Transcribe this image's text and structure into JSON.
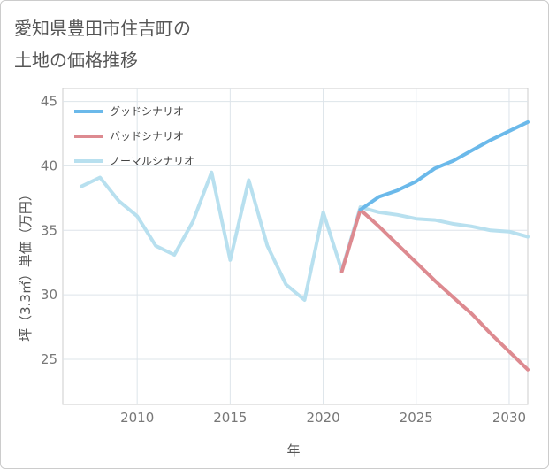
{
  "chart_data": {
    "type": "line",
    "title_line1": "愛知県豊田市住吉町の",
    "title_line2": "土地の価格推移",
    "xlabel": "年",
    "ylabel": "坪（3.3㎡）単価（万円）",
    "xlim": [
      2006,
      2031
    ],
    "ylim": [
      21.5,
      46
    ],
    "x_ticks": [
      2010,
      2015,
      2020,
      2025,
      2030
    ],
    "y_ticks": [
      25,
      30,
      35,
      40,
      45
    ],
    "grid": true,
    "legend_position": "top-left",
    "series": [
      {
        "name": "グッドシナリオ",
        "color": "#6bb9ea",
        "x": [
          2022,
          2023,
          2024,
          2025,
          2026,
          2027,
          2028,
          2029,
          2030,
          2031
        ],
        "values": [
          36.6,
          37.6,
          38.1,
          38.8,
          39.8,
          40.4,
          41.2,
          42.0,
          42.7,
          43.4
        ]
      },
      {
        "name": "バッドシナリオ",
        "color": "#dd8a90",
        "x": [
          2021,
          2022,
          2023,
          2024,
          2025,
          2026,
          2027,
          2028,
          2029,
          2030,
          2031
        ],
        "values": [
          31.8,
          36.6,
          35.3,
          33.9,
          32.5,
          31.1,
          29.8,
          28.5,
          27.0,
          25.6,
          24.2
        ]
      },
      {
        "name": "ノーマルシナリオ",
        "color": "#b8e0ef",
        "x": [
          2007,
          2008,
          2009,
          2010,
          2011,
          2012,
          2013,
          2014,
          2015,
          2016,
          2017,
          2018,
          2019,
          2020,
          2021,
          2022,
          2023,
          2024,
          2025,
          2026,
          2027,
          2028,
          2029,
          2030,
          2031
        ],
        "values": [
          38.4,
          39.1,
          37.3,
          36.1,
          33.8,
          33.1,
          35.7,
          39.5,
          32.7,
          38.9,
          33.8,
          30.8,
          29.6,
          36.4,
          31.9,
          36.8,
          36.4,
          36.2,
          35.9,
          35.8,
          35.5,
          35.3,
          35.0,
          34.9,
          34.5
        ]
      }
    ]
  }
}
